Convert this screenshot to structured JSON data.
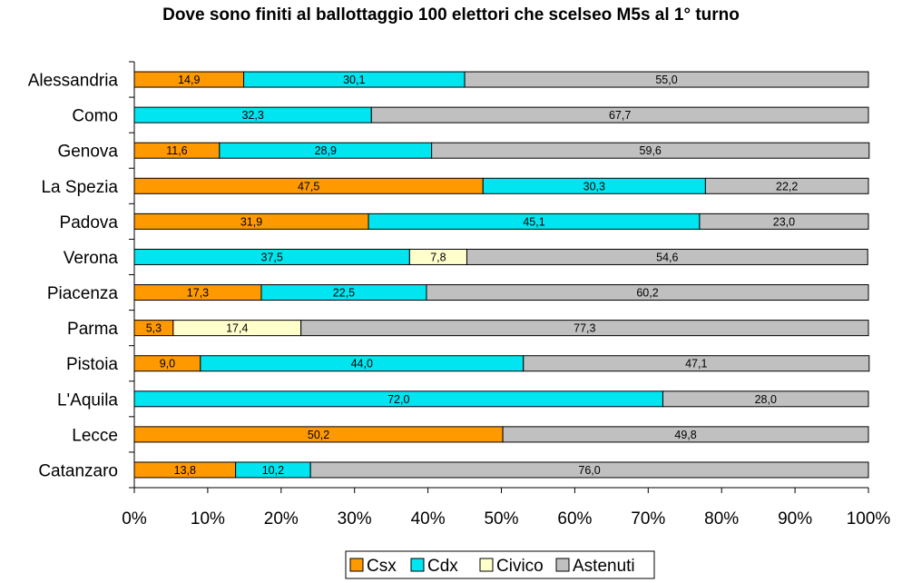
{
  "chart_data": {
    "type": "bar",
    "orientation": "horizontal",
    "stacked": true,
    "title": "Dove sono finiti al ballottaggio 100 elettori che scelseo M5s al 1° turno",
    "categories": [
      "Alessandria",
      "Como",
      "Genova",
      "La Spezia",
      "Padova",
      "Verona",
      "Piacenza",
      "Parma",
      "Pistoia",
      "L'Aquila",
      "Lecce",
      "Catanzaro"
    ],
    "series": [
      {
        "name": "Csx",
        "color": "#ff9900",
        "values": [
          14.9,
          0,
          11.6,
          47.5,
          31.9,
          null,
          17.3,
          5.3,
          9.0,
          0,
          50.2,
          13.8
        ],
        "labels": [
          "14,9",
          "0",
          "11,6",
          "47,5",
          "31,9",
          null,
          "17,3",
          "5,3",
          "9,0",
          "0",
          "50,2",
          "13,8"
        ]
      },
      {
        "name": "Cdx",
        "color": "#00e5f0",
        "values": [
          30.1,
          32.3,
          28.9,
          30.3,
          45.1,
          37.5,
          22.5,
          null,
          44.0,
          72.0,
          0,
          10.2
        ],
        "labels": [
          "30,1",
          "32,3",
          "28,9",
          "30,3",
          "45,1",
          "37,5",
          "22,5",
          null,
          "44,0",
          "72,0",
          "0",
          "10,2"
        ]
      },
      {
        "name": "Civico",
        "color": "#ffffcc",
        "values": [
          null,
          null,
          null,
          null,
          null,
          7.8,
          null,
          17.4,
          null,
          null,
          null,
          null
        ],
        "labels": [
          null,
          null,
          null,
          null,
          null,
          "7,8",
          null,
          "17,4",
          null,
          null,
          null,
          null
        ]
      },
      {
        "name": "Astenuti",
        "color": "#c0c0c0",
        "values": [
          55.0,
          67.7,
          59.6,
          22.2,
          23.0,
          54.6,
          60.2,
          77.3,
          47.1,
          28.0,
          49.8,
          76.0
        ],
        "labels": [
          "55,0",
          "67,7",
          "59,6",
          "22,2",
          "23,0",
          "54,6",
          "60,2",
          "77,3",
          "47,1",
          "28,0",
          "49,8",
          "76,0"
        ]
      }
    ],
    "xlim": [
      0,
      100
    ],
    "xticks": [
      "0%",
      "10%",
      "20%",
      "30%",
      "40%",
      "50%",
      "60%",
      "70%",
      "80%",
      "90%",
      "100%"
    ],
    "grid": false,
    "legend_position": "bottom"
  }
}
